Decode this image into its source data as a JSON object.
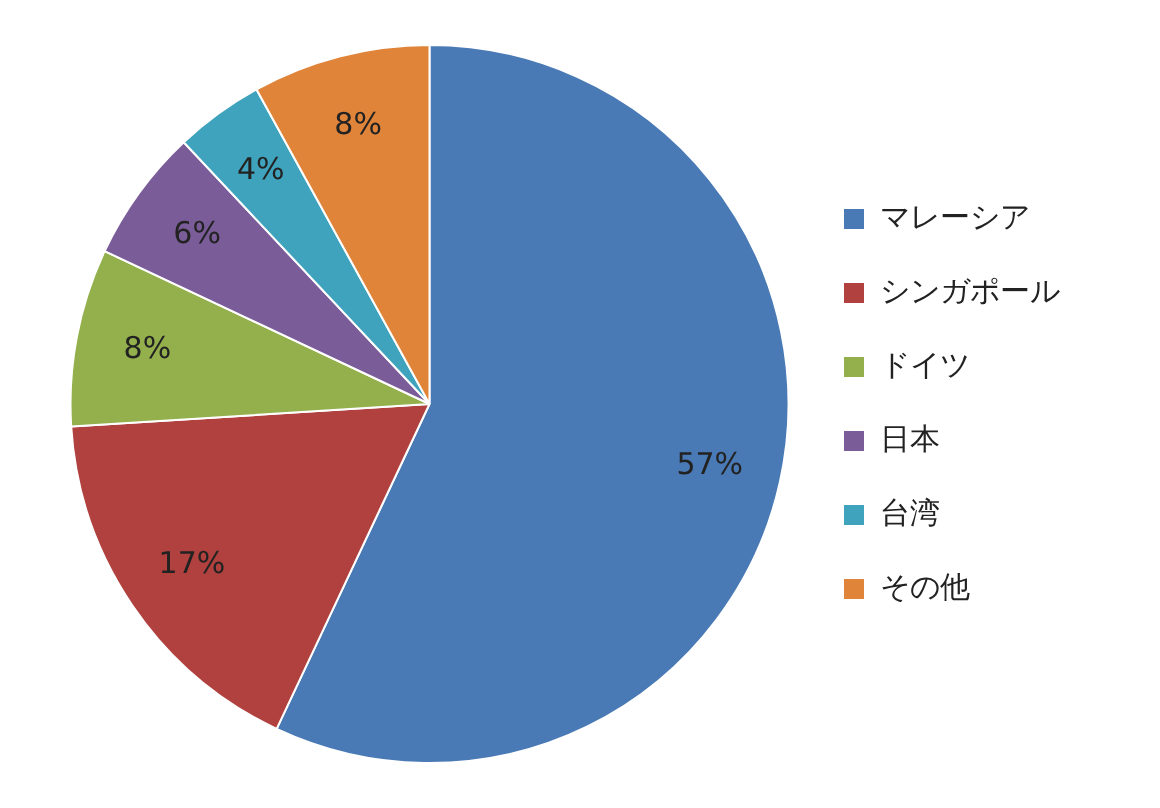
{
  "chart_data": {
    "type": "pie",
    "categories": [
      "マレーシア",
      "シンガポール",
      "ドイツ",
      "日本",
      "台湾",
      "その他"
    ],
    "values": [
      57,
      17,
      8,
      6,
      4,
      8
    ],
    "colors": [
      "#4a7ab5",
      "#b0413e",
      "#93b04d",
      "#7a5c98",
      "#40a3bd",
      "#e0843a"
    ],
    "value_labels": [
      "57%",
      "17%",
      "8%",
      "6%",
      "4%",
      "8%"
    ],
    "legend": "right"
  }
}
